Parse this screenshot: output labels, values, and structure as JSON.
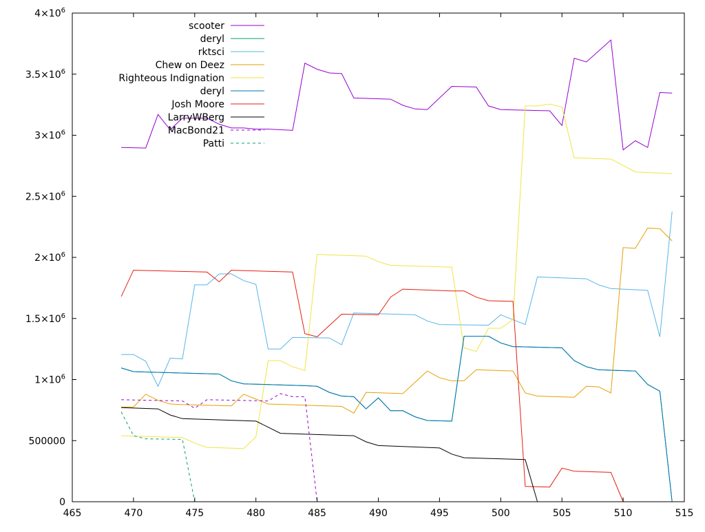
{
  "chart_data": {
    "type": "line",
    "title": "",
    "xlabel": "",
    "ylabel": "",
    "xlim": [
      465,
      515
    ],
    "ylim": [
      0,
      4000000
    ],
    "grid": false,
    "legend_position": "top-left",
    "x_ticks": [
      {
        "value": 465,
        "label": "465"
      },
      {
        "value": 470,
        "label": "470"
      },
      {
        "value": 475,
        "label": "475"
      },
      {
        "value": 480,
        "label": "480"
      },
      {
        "value": 485,
        "label": "485"
      },
      {
        "value": 490,
        "label": "490"
      },
      {
        "value": 495,
        "label": "495"
      },
      {
        "value": 500,
        "label": "500"
      },
      {
        "value": 505,
        "label": "505"
      },
      {
        "value": 510,
        "label": "510"
      },
      {
        "value": 515,
        "label": "515"
      }
    ],
    "y_ticks": [
      {
        "value": 0,
        "base": "0",
        "exp": ""
      },
      {
        "value": 500000,
        "base": "500000",
        "exp": ""
      },
      {
        "value": 1000000,
        "base": "1×10",
        "exp": "6"
      },
      {
        "value": 1500000,
        "base": "1.5×10",
        "exp": "6"
      },
      {
        "value": 2000000,
        "base": "2×10",
        "exp": "6"
      },
      {
        "value": 2500000,
        "base": "2.5×10",
        "exp": "6"
      },
      {
        "value": 3000000,
        "base": "3×10",
        "exp": "6"
      },
      {
        "value": 3500000,
        "base": "3.5×10",
        "exp": "6"
      },
      {
        "value": 4000000,
        "base": "4×10",
        "exp": "6"
      }
    ],
    "series": [
      {
        "name": "scooter",
        "color": "#9400d3",
        "dash": "solid",
        "points": [
          [
            469,
            2900000
          ],
          [
            471,
            2895000
          ],
          [
            472,
            3170000
          ],
          [
            473,
            3045000
          ],
          [
            474,
            3140000
          ],
          [
            475,
            3140000
          ],
          [
            476,
            3140000
          ],
          [
            477,
            3090000
          ],
          [
            478,
            3060000
          ],
          [
            479,
            3060000
          ],
          [
            480,
            3050000
          ],
          [
            481,
            3050000
          ],
          [
            483,
            3040000
          ],
          [
            484,
            3590000
          ],
          [
            485,
            3540000
          ],
          [
            486,
            3510000
          ],
          [
            487,
            3505000
          ],
          [
            488,
            3305000
          ],
          [
            491,
            3295000
          ],
          [
            492,
            3245000
          ],
          [
            493,
            3215000
          ],
          [
            494,
            3210000
          ],
          [
            496,
            3400000
          ],
          [
            498,
            3395000
          ],
          [
            499,
            3240000
          ],
          [
            500,
            3210000
          ],
          [
            504,
            3200000
          ],
          [
            505,
            3080000
          ],
          [
            506,
            3630000
          ],
          [
            507,
            3600000
          ],
          [
            509,
            3780000
          ],
          [
            510,
            2880000
          ],
          [
            511,
            2955000
          ],
          [
            512,
            2900000
          ],
          [
            513,
            3350000
          ],
          [
            514,
            3345000
          ]
        ]
      },
      {
        "name": "deryl",
        "color": "#009e73",
        "dash": "solid",
        "points": [
          [
            469,
            1095000
          ],
          [
            470,
            1065000
          ],
          [
            477,
            1045000
          ],
          [
            478,
            990000
          ],
          [
            479,
            965000
          ],
          [
            484,
            950000
          ],
          [
            485,
            945000
          ],
          [
            486,
            895000
          ],
          [
            487,
            865000
          ],
          [
            488,
            860000
          ],
          [
            489,
            760000
          ],
          [
            490,
            850000
          ],
          [
            491,
            745000
          ],
          [
            492,
            745000
          ],
          [
            493,
            695000
          ],
          [
            494,
            665000
          ],
          [
            496,
            660000
          ],
          [
            497,
            1355000
          ],
          [
            499,
            1355000
          ],
          [
            500,
            1300000
          ],
          [
            501,
            1270000
          ],
          [
            505,
            1260000
          ],
          [
            506,
            1155000
          ],
          [
            507,
            1105000
          ],
          [
            508,
            1080000
          ],
          [
            511,
            1070000
          ],
          [
            512,
            960000
          ],
          [
            513,
            905000
          ],
          [
            514,
            0
          ]
        ]
      },
      {
        "name": "rktsci",
        "color": "#56b4e9",
        "dash": "solid",
        "points": [
          [
            469,
            1205000
          ],
          [
            470,
            1205000
          ],
          [
            471,
            1150000
          ],
          [
            472,
            945000
          ],
          [
            473,
            1175000
          ],
          [
            474,
            1170000
          ],
          [
            475,
            1775000
          ],
          [
            476,
            1775000
          ],
          [
            477,
            1865000
          ],
          [
            478,
            1865000
          ],
          [
            479,
            1810000
          ],
          [
            480,
            1780000
          ],
          [
            481,
            1250000
          ],
          [
            482,
            1250000
          ],
          [
            483,
            1345000
          ],
          [
            486,
            1340000
          ],
          [
            487,
            1285000
          ],
          [
            488,
            1545000
          ],
          [
            493,
            1530000
          ],
          [
            494,
            1480000
          ],
          [
            495,
            1450000
          ],
          [
            499,
            1445000
          ],
          [
            500,
            1530000
          ],
          [
            502,
            1450000
          ],
          [
            503,
            1840000
          ],
          [
            507,
            1825000
          ],
          [
            508,
            1775000
          ],
          [
            509,
            1745000
          ],
          [
            512,
            1730000
          ],
          [
            513,
            1350000
          ],
          [
            514,
            2375000
          ]
        ]
      },
      {
        "name": "Chew on Deez",
        "color": "#e69f00",
        "dash": "solid",
        "points": [
          [
            469,
            775000
          ],
          [
            470,
            775000
          ],
          [
            471,
            880000
          ],
          [
            472,
            830000
          ],
          [
            473,
            800000
          ],
          [
            474,
            795000
          ],
          [
            478,
            785000
          ],
          [
            479,
            880000
          ],
          [
            480,
            840000
          ],
          [
            481,
            800000
          ],
          [
            487,
            780000
          ],
          [
            488,
            725000
          ],
          [
            489,
            895000
          ],
          [
            492,
            885000
          ],
          [
            494,
            1070000
          ],
          [
            495,
            1015000
          ],
          [
            496,
            990000
          ],
          [
            497,
            990000
          ],
          [
            498,
            1080000
          ],
          [
            501,
            1070000
          ],
          [
            502,
            890000
          ],
          [
            503,
            865000
          ],
          [
            506,
            855000
          ],
          [
            507,
            945000
          ],
          [
            508,
            940000
          ],
          [
            509,
            890000
          ],
          [
            510,
            2080000
          ],
          [
            511,
            2075000
          ],
          [
            512,
            2240000
          ],
          [
            513,
            2235000
          ],
          [
            514,
            2135000
          ]
        ]
      },
      {
        "name": "Righteous Indignation",
        "color": "#f0e442",
        "dash": "solid",
        "points": [
          [
            469,
            540000
          ],
          [
            474,
            525000
          ],
          [
            475,
            480000
          ],
          [
            476,
            445000
          ],
          [
            479,
            435000
          ],
          [
            480,
            530000
          ],
          [
            481,
            1155000
          ],
          [
            482,
            1155000
          ],
          [
            483,
            1105000
          ],
          [
            484,
            1075000
          ],
          [
            485,
            2025000
          ],
          [
            489,
            2010000
          ],
          [
            490,
            1965000
          ],
          [
            491,
            1935000
          ],
          [
            496,
            1920000
          ],
          [
            497,
            1260000
          ],
          [
            498,
            1230000
          ],
          [
            499,
            1420000
          ],
          [
            500,
            1420000
          ],
          [
            501,
            1490000
          ],
          [
            502,
            3240000
          ],
          [
            503,
            3240000
          ],
          [
            504,
            3255000
          ],
          [
            505,
            3230000
          ],
          [
            506,
            2815000
          ],
          [
            509,
            2805000
          ],
          [
            511,
            2700000
          ],
          [
            514,
            2685000
          ]
        ]
      },
      {
        "name": "deryl",
        "color": "#0072b2",
        "dash": "solid",
        "points": [
          [
            469,
            1095000
          ],
          [
            470,
            1065000
          ],
          [
            477,
            1045000
          ],
          [
            478,
            990000
          ],
          [
            479,
            965000
          ],
          [
            484,
            950000
          ],
          [
            485,
            945000
          ],
          [
            486,
            895000
          ],
          [
            487,
            865000
          ],
          [
            488,
            860000
          ],
          [
            489,
            760000
          ],
          [
            490,
            850000
          ],
          [
            491,
            745000
          ],
          [
            492,
            745000
          ],
          [
            493,
            695000
          ],
          [
            494,
            665000
          ],
          [
            496,
            660000
          ],
          [
            497,
            1355000
          ],
          [
            499,
            1355000
          ],
          [
            500,
            1300000
          ],
          [
            501,
            1270000
          ],
          [
            505,
            1260000
          ],
          [
            506,
            1155000
          ],
          [
            507,
            1105000
          ],
          [
            508,
            1080000
          ],
          [
            511,
            1070000
          ],
          [
            512,
            960000
          ],
          [
            513,
            905000
          ],
          [
            514,
            0
          ]
        ]
      },
      {
        "name": "Josh Moore",
        "color": "#e51e10",
        "dash": "solid",
        "points": [
          [
            469,
            1680000
          ],
          [
            470,
            1895000
          ],
          [
            476,
            1880000
          ],
          [
            477,
            1800000
          ],
          [
            478,
            1895000
          ],
          [
            483,
            1880000
          ],
          [
            484,
            1375000
          ],
          [
            485,
            1350000
          ],
          [
            487,
            1535000
          ],
          [
            490,
            1530000
          ],
          [
            491,
            1675000
          ],
          [
            492,
            1740000
          ],
          [
            496,
            1725000
          ],
          [
            497,
            1725000
          ],
          [
            498,
            1675000
          ],
          [
            499,
            1645000
          ],
          [
            501,
            1640000
          ],
          [
            502,
            125000
          ],
          [
            504,
            120000
          ],
          [
            505,
            275000
          ],
          [
            506,
            250000
          ],
          [
            509,
            240000
          ],
          [
            510,
            0
          ]
        ]
      },
      {
        "name": "LarryWBerg",
        "color": "#000000",
        "dash": "solid",
        "points": [
          [
            469,
            770000
          ],
          [
            472,
            760000
          ],
          [
            473,
            710000
          ],
          [
            474,
            680000
          ],
          [
            480,
            660000
          ],
          [
            481,
            610000
          ],
          [
            482,
            560000
          ],
          [
            488,
            540000
          ],
          [
            489,
            490000
          ],
          [
            490,
            460000
          ],
          [
            495,
            440000
          ],
          [
            496,
            390000
          ],
          [
            497,
            360000
          ],
          [
            502,
            345000
          ],
          [
            503,
            0
          ]
        ]
      },
      {
        "name": "MacBond21",
        "color": "#9400d3",
        "dash": "dashed",
        "points": [
          [
            469,
            835000
          ],
          [
            474,
            825000
          ],
          [
            475,
            765000
          ],
          [
            476,
            835000
          ],
          [
            481,
            825000
          ],
          [
            482,
            885000
          ],
          [
            483,
            860000
          ],
          [
            484,
            860000
          ],
          [
            485,
            0
          ]
        ]
      },
      {
        "name": "Patti",
        "color": "#009e73",
        "dash": "dashed",
        "points": [
          [
            469,
            735000
          ],
          [
            470,
            540000
          ],
          [
            471,
            515000
          ],
          [
            474,
            510000
          ],
          [
            475,
            0
          ]
        ]
      }
    ]
  }
}
